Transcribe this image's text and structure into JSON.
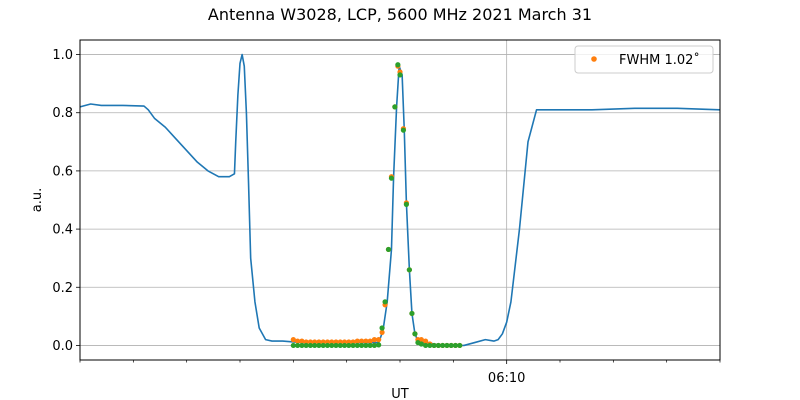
{
  "chart_data": {
    "type": "line",
    "title": "Antenna W3028, LCP, 5600 MHz 2021 March 31",
    "xlabel": "UT",
    "ylabel": "a.u.",
    "x_unit": "minutes UT after 06:00",
    "xlim": [
      0,
      15
    ],
    "ylim": [
      -0.05,
      1.05
    ],
    "y_ticks": [
      0.0,
      0.2,
      0.4,
      0.6,
      0.8,
      1.0
    ],
    "y_tick_labels": [
      "0.0",
      "0.2",
      "0.4",
      "0.6",
      "0.8",
      "1.0"
    ],
    "x_major_ticks": [
      10
    ],
    "x_major_tick_labels": [
      "06:10"
    ],
    "x_minor_ticks": [
      0,
      1.25,
      2.5,
      3.75,
      5,
      6.25,
      7.5,
      8.75,
      11.25,
      12.5,
      13.75,
      15
    ],
    "grid": true,
    "legend": {
      "placement": "top-right",
      "entries": [
        "FWHM 1.02$^\\circ$"
      ],
      "display_label": "FWHM 1.02˚"
    },
    "series": [
      {
        "style": "line",
        "color": "#1f77b4",
        "x": [
          0,
          0.25,
          0.5,
          1,
          1.5,
          1.6,
          1.75,
          2.0,
          2.25,
          2.5,
          2.75,
          3.0,
          3.25,
          3.5,
          3.62,
          3.65,
          3.7,
          3.75,
          3.8,
          3.85,
          3.9,
          3.95,
          4.0,
          4.1,
          4.2,
          4.35,
          4.5,
          4.75,
          5.0,
          5.25,
          5.5,
          6.0,
          6.5,
          7.0,
          7.1,
          7.2,
          7.3,
          7.35,
          7.42,
          7.48,
          7.55,
          7.6,
          7.65,
          7.72,
          7.78,
          7.85,
          7.92,
          8.0,
          8.15,
          8.3,
          8.5,
          9.0,
          9.25,
          9.5,
          9.7,
          9.8,
          9.9,
          10.0,
          10.1,
          10.3,
          10.5,
          10.7,
          11.0,
          12.0,
          13.0,
          14.0,
          15.0
        ],
        "y": [
          0.82,
          0.83,
          0.825,
          0.825,
          0.823,
          0.81,
          0.78,
          0.75,
          0.71,
          0.67,
          0.63,
          0.6,
          0.58,
          0.58,
          0.59,
          0.7,
          0.86,
          0.97,
          1.0,
          0.96,
          0.8,
          0.56,
          0.3,
          0.15,
          0.06,
          0.02,
          0.015,
          0.015,
          0.012,
          0.01,
          0.01,
          0.01,
          0.01,
          0.01,
          0.05,
          0.15,
          0.33,
          0.58,
          0.82,
          0.96,
          0.93,
          0.74,
          0.49,
          0.26,
          0.11,
          0.04,
          0.015,
          0.01,
          0.01,
          0.005,
          0.0,
          0.0,
          0.01,
          0.02,
          0.015,
          0.02,
          0.04,
          0.08,
          0.15,
          0.4,
          0.7,
          0.81,
          0.81,
          0.81,
          0.815,
          0.815,
          0.81
        ]
      },
      {
        "name": "FWHM 1.02˚",
        "style": "scatter",
        "color": "#ff7f0e",
        "x": [
          5.0,
          5.1,
          5.2,
          5.3,
          5.4,
          5.5,
          5.6,
          5.7,
          5.8,
          5.9,
          6.0,
          6.1,
          6.2,
          6.3,
          6.4,
          6.5,
          6.6,
          6.7,
          6.8,
          6.9,
          7.0,
          7.08,
          7.15,
          7.23,
          7.3,
          7.38,
          7.45,
          7.5,
          7.58,
          7.65,
          7.72,
          7.78,
          7.85,
          7.92,
          8.0,
          8.1,
          8.2,
          8.3,
          8.4,
          8.5,
          8.6,
          8.7,
          8.8,
          8.9
        ],
        "y": [
          0.02,
          0.015,
          0.015,
          0.012,
          0.012,
          0.012,
          0.012,
          0.012,
          0.012,
          0.012,
          0.012,
          0.012,
          0.012,
          0.012,
          0.012,
          0.015,
          0.015,
          0.015,
          0.015,
          0.02,
          0.02,
          0.045,
          0.14,
          0.33,
          0.58,
          0.82,
          0.96,
          0.94,
          0.745,
          0.49,
          0.26,
          0.11,
          0.04,
          0.02,
          0.02,
          0.015,
          0.005,
          0.0,
          0.0,
          0.0,
          0.0,
          0.0,
          0.0,
          0.0
        ]
      },
      {
        "style": "scatter",
        "color": "#2ca02c",
        "x": [
          5.0,
          5.1,
          5.2,
          5.3,
          5.4,
          5.5,
          5.6,
          5.7,
          5.8,
          5.9,
          6.0,
          6.1,
          6.2,
          6.3,
          6.4,
          6.5,
          6.6,
          6.7,
          6.8,
          6.9,
          7.0,
          7.08,
          7.15,
          7.23,
          7.3,
          7.38,
          7.45,
          7.5,
          7.58,
          7.65,
          7.72,
          7.78,
          7.85,
          7.92,
          8.0,
          8.1,
          8.2,
          8.3,
          8.4,
          8.5,
          8.6,
          8.7,
          8.8,
          8.9
        ],
        "y": [
          0.0,
          0.0,
          0.0,
          0.0,
          0.0,
          0.0,
          0.0,
          0.0,
          0.0,
          0.0,
          0.0,
          0.0,
          0.0,
          0.0,
          0.0,
          0.0,
          0.0,
          0.0,
          0.0,
          0.0,
          0.002,
          0.06,
          0.15,
          0.33,
          0.575,
          0.82,
          0.965,
          0.93,
          0.74,
          0.485,
          0.26,
          0.11,
          0.04,
          0.01,
          0.005,
          0.0,
          0.0,
          0.0,
          0.0,
          0.0,
          0.0,
          0.0,
          0.0,
          0.0
        ]
      }
    ]
  }
}
